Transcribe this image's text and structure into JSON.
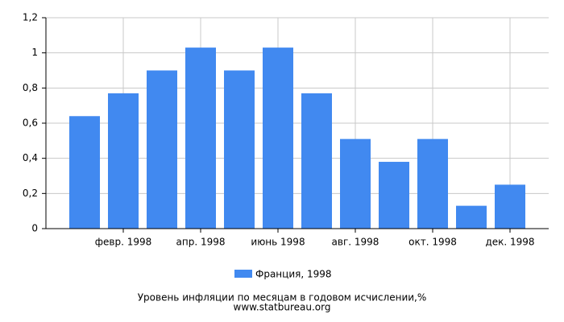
{
  "chart_data": {
    "type": "bar",
    "title": "Уровень инфляции по месяцам в годовом исчислении,%",
    "subtitle": "www.statbureau.org",
    "categories": [
      null,
      "февр. 1998",
      null,
      "апр. 1998",
      null,
      "июнь 1998",
      null,
      "авг. 1998",
      null,
      "окт. 1998",
      null,
      "дек. 1998"
    ],
    "series": [
      {
        "name": "Франция, 1998",
        "color": "#4189f0",
        "values": [
          0.64,
          0.77,
          0.9,
          1.03,
          0.9,
          1.03,
          0.77,
          0.51,
          0.38,
          0.51,
          0.13,
          0.25
        ]
      }
    ],
    "ylim": [
      0,
      1.2
    ],
    "yticks": [
      0,
      {
        "value": 0.2,
        "label": "0,2"
      },
      {
        "value": 0.4,
        "label": "0,4"
      },
      {
        "value": 0.6,
        "label": "0,6"
      },
      {
        "value": 0.8,
        "label": "0,8"
      },
      1,
      {
        "value": 1.2,
        "label": "1,2"
      }
    ],
    "grid": true
  }
}
